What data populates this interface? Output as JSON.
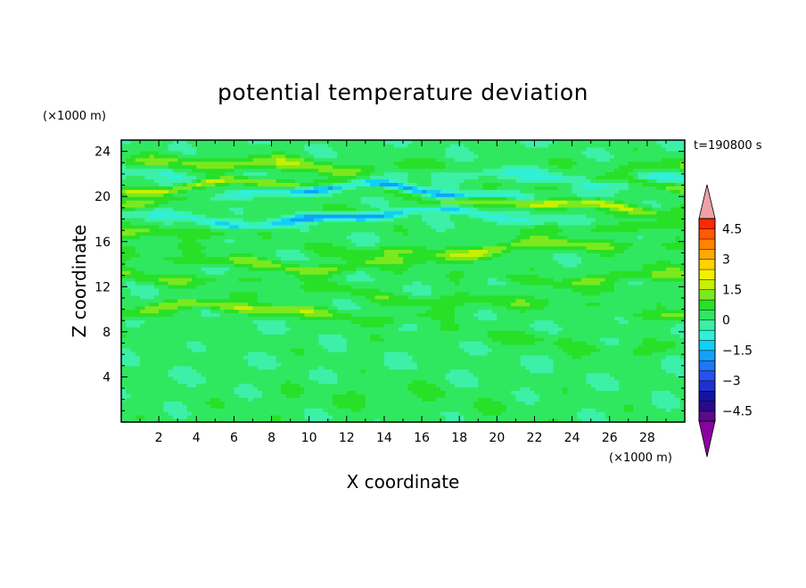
{
  "chart_data": {
    "type": "heatmap",
    "title": "potential temperature deviation",
    "xlabel": "X coordinate",
    "ylabel": "Z coordinate",
    "x_unit": "(×1000 m)",
    "y_unit": "(×1000 m)",
    "time_label": "t=190800 s",
    "xlim": [
      0,
      30
    ],
    "ylim": [
      0,
      25
    ],
    "x_ticks": [
      "2",
      "4",
      "6",
      "8",
      "10",
      "12",
      "14",
      "16",
      "18",
      "20",
      "22",
      "24",
      "26",
      "28"
    ],
    "y_ticks": [
      "4",
      "8",
      "12",
      "16",
      "20",
      "24"
    ],
    "colorbar": {
      "levels": [
        -5.0,
        -4.5,
        -4.0,
        -3.5,
        -3.0,
        -2.5,
        -2.0,
        -1.5,
        -1.0,
        -0.5,
        0.0,
        0.5,
        1.0,
        1.5,
        2.0,
        2.5,
        3.0,
        3.5,
        4.0,
        4.5,
        5.0
      ],
      "labels": [
        "4.5",
        "3",
        "1.5",
        "0",
        "−1.5",
        "−3",
        "−4.5"
      ],
      "label_values": [
        4.5,
        3.0,
        1.5,
        0.0,
        -1.5,
        -3.0,
        -4.5
      ],
      "colors": [
        "#5a0a8a",
        "#2a0a8a",
        "#1414a0",
        "#1e32d2",
        "#2850f0",
        "#1e78f5",
        "#14a0fa",
        "#10d0f8",
        "#30f0d8",
        "#3cf0a8",
        "#30e860",
        "#28e028",
        "#7ce81e",
        "#c8f000",
        "#f0f000",
        "#ffd200",
        "#ffaa00",
        "#ff8200",
        "#ff5a00",
        "#ff2800"
      ],
      "over_color": "#f0a0a8",
      "under_color": "#8a00a0"
    },
    "bands": [
      {
        "z": 22.8,
        "v": 1.2,
        "w": 0.6,
        "wave": 0.3
      },
      {
        "z": 21.8,
        "v": -0.9,
        "w": 0.5,
        "wave": 0.4
      },
      {
        "z": 20.4,
        "v": -2.0,
        "w": 0.35,
        "wave": 0.6
      },
      {
        "z": 20.9,
        "v": 1.6,
        "w": 0.35,
        "wave": 0.5
      },
      {
        "z": 19.2,
        "v": 1.8,
        "w": 0.45,
        "wave": 0.5
      },
      {
        "z": 18.2,
        "v": -2.2,
        "w": 0.4,
        "wave": 0.6
      },
      {
        "z": 17.2,
        "v": 0.8,
        "w": 0.5,
        "wave": 0.4
      },
      {
        "z": 15.4,
        "v": 1.2,
        "w": 0.5,
        "wave": 0.5
      },
      {
        "z": 14.2,
        "v": 1.0,
        "w": 0.45,
        "wave": 0.5
      },
      {
        "z": 13.0,
        "v": 0.9,
        "w": 0.45,
        "wave": 0.5
      },
      {
        "z": 11.2,
        "v": 0.7,
        "w": 0.5,
        "wave": 0.6
      },
      {
        "z": 9.8,
        "v": 1.3,
        "w": 0.45,
        "wave": 0.6
      },
      {
        "z": 7.2,
        "v": 0.5,
        "w": 0.6,
        "wave": 0.8
      },
      {
        "z": 1.8,
        "v": 0.3,
        "w": 1.2,
        "wave": 0.8
      }
    ]
  }
}
